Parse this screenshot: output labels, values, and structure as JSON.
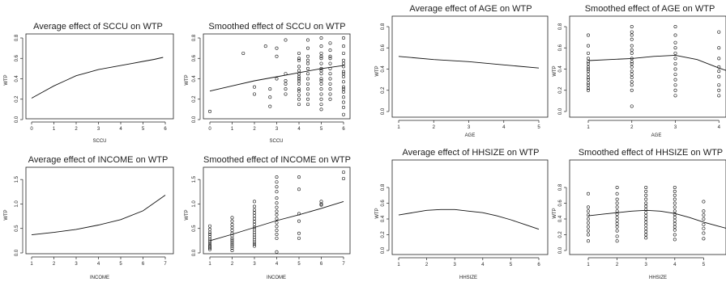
{
  "figure": {
    "panels": [
      {
        "id": "p1",
        "title": "Average effect of SCCU on WTP",
        "xlabel": "SCCU",
        "ylabel": "WTP"
      },
      {
        "id": "p2",
        "title": "Smoothed effect of SCCU on WTP",
        "xlabel": "SCCU",
        "ylabel": "WTP"
      },
      {
        "id": "p3",
        "title": "Average effect of AGE on WTP",
        "xlabel": "AGE",
        "ylabel": "WTP"
      },
      {
        "id": "p4",
        "title": "Smoothed effect of AGE on WTP",
        "xlabel": "AGE",
        "ylabel": "WTP"
      },
      {
        "id": "p5",
        "title": "Average effect of INCOME on WTP",
        "xlabel": "INCOME",
        "ylabel": "WTP"
      },
      {
        "id": "p6",
        "title": "Smoothed effect of INCOME on WTP",
        "xlabel": "INCOME",
        "ylabel": "WTP"
      },
      {
        "id": "p7",
        "title": "Average effect of HHSIZE on WTP",
        "xlabel": "HHSIZE",
        "ylabel": "WTP"
      },
      {
        "id": "p8",
        "title": "Smoothed effect of HHSIZE on WTP",
        "xlabel": "HHSIZE",
        "ylabel": "WTP"
      }
    ]
  },
  "chart_data": [
    {
      "type": "line",
      "title": "Average effect of SCCU on WTP",
      "xlabel": "SCCU",
      "ylabel": "WTP",
      "xlim": [
        0,
        6
      ],
      "ylim": [
        0,
        0.8
      ],
      "xticks": [
        "0",
        "1",
        "2",
        "3",
        "4",
        "5",
        "6"
      ],
      "yticks": [
        "0.0",
        "0.2",
        "0.4",
        "0.6",
        "0.8"
      ],
      "series": [
        {
          "x": [
            0,
            0.5,
            1,
            1.5,
            2,
            2.5,
            3,
            3.5,
            4,
            4.5,
            5,
            5.5,
            5.9
          ],
          "y": [
            0.21,
            0.27,
            0.33,
            0.38,
            0.43,
            0.46,
            0.49,
            0.51,
            0.53,
            0.55,
            0.57,
            0.59,
            0.61
          ]
        }
      ]
    },
    {
      "type": "scatter",
      "title": "Smoothed effect of SCCU on WTP",
      "xlabel": "SCCU",
      "ylabel": "WTP",
      "xlim": [
        0,
        6
      ],
      "ylim": [
        0,
        0.8
      ],
      "xticks": [
        "0",
        "1",
        "2",
        "3",
        "4",
        "5",
        "6"
      ],
      "yticks": [
        "0.0",
        "0.2",
        "0.4",
        "0.6",
        "0.8"
      ],
      "points": {
        "x": [
          0,
          1.5,
          2,
          2,
          2.5,
          2.7,
          2.7,
          2.7,
          3,
          3,
          3,
          3.4,
          3.4,
          3.4,
          3.4,
          3.4,
          3.4,
          4,
          4,
          4,
          4,
          4,
          4,
          4,
          4,
          4,
          4,
          4,
          4,
          4,
          4,
          4,
          4.4,
          4.4,
          4.4,
          4.4,
          4.4,
          4.4,
          4.4,
          4.4,
          4.4,
          4.4,
          4.4,
          4.4,
          4.4,
          5,
          5,
          5,
          5,
          5,
          5,
          5,
          5,
          5,
          5,
          5,
          5,
          5,
          5,
          5,
          5,
          5,
          5.4,
          5.4,
          5.4,
          5.4,
          5.4,
          5.4,
          5.4,
          5.4,
          5.4,
          5.4,
          5.4,
          5.4,
          6,
          6,
          6,
          6,
          6,
          6,
          6,
          6,
          6,
          6,
          6,
          6,
          6,
          6,
          6,
          6,
          6
        ],
        "y": [
          0.08,
          0.65,
          0.32,
          0.25,
          0.72,
          0.3,
          0.22,
          0.13,
          0.4,
          0.7,
          0.62,
          0.78,
          0.45,
          0.3,
          0.38,
          0.25,
          0.35,
          0.65,
          0.58,
          0.48,
          0.4,
          0.35,
          0.3,
          0.24,
          0.2,
          0.15,
          0.45,
          0.52,
          0.28,
          0.38,
          0.42,
          0.6,
          0.78,
          0.7,
          0.62,
          0.55,
          0.5,
          0.45,
          0.4,
          0.35,
          0.3,
          0.25,
          0.2,
          0.15,
          0.58,
          0.8,
          0.72,
          0.65,
          0.6,
          0.55,
          0.5,
          0.45,
          0.4,
          0.35,
          0.3,
          0.25,
          0.2,
          0.15,
          0.1,
          0.48,
          0.62,
          0.38,
          0.75,
          0.68,
          0.62,
          0.55,
          0.5,
          0.45,
          0.4,
          0.35,
          0.3,
          0.25,
          0.2,
          0.6,
          0.8,
          0.72,
          0.65,
          0.58,
          0.52,
          0.47,
          0.42,
          0.37,
          0.32,
          0.27,
          0.22,
          0.17,
          0.12,
          0.05,
          0.45,
          0.55,
          0.3
        ]
      },
      "series": [
        {
          "x": [
            0,
            1,
            2,
            3,
            4,
            5,
            6
          ],
          "y": [
            0.28,
            0.33,
            0.38,
            0.42,
            0.46,
            0.5,
            0.53
          ]
        }
      ]
    },
    {
      "type": "line",
      "title": "Average effect of AGE on WTP",
      "xlabel": "AGE",
      "ylabel": "WTP",
      "xlim": [
        1,
        5
      ],
      "ylim": [
        0,
        0.8
      ],
      "xticks": [
        "1",
        "2",
        "3",
        "4",
        "5"
      ],
      "yticks": [
        "0.0",
        "0.2",
        "0.4",
        "0.6",
        "0.8"
      ],
      "series": [
        {
          "x": [
            1,
            2,
            3,
            4,
            5
          ],
          "y": [
            0.52,
            0.49,
            0.47,
            0.44,
            0.41
          ]
        }
      ]
    },
    {
      "type": "scatter",
      "title": "Smoothed effect of AGE on WTP",
      "xlabel": "AGE",
      "ylabel": "WTP",
      "xlim": [
        1,
        5
      ],
      "ylim": [
        0,
        0.8
      ],
      "xticks": [
        "1",
        "2",
        "3",
        "4"
      ],
      "yticks": [
        "0.0",
        "0.2",
        "0.4",
        "0.6",
        "0.8"
      ],
      "points": {
        "x": [
          1,
          1,
          1,
          1,
          1,
          1,
          1,
          1,
          1,
          1,
          1,
          1,
          1,
          1,
          1,
          1,
          2,
          2,
          2,
          2,
          2,
          2,
          2,
          2,
          2,
          2,
          2,
          2,
          2,
          2,
          2,
          2,
          2,
          2,
          3,
          3,
          3,
          3,
          3,
          3,
          3,
          3,
          3,
          3,
          3,
          3,
          3,
          4,
          4,
          4,
          4,
          4,
          4,
          4,
          4,
          4
        ],
        "y": [
          0.72,
          0.62,
          0.55,
          0.5,
          0.47,
          0.45,
          0.42,
          0.4,
          0.38,
          0.35,
          0.32,
          0.3,
          0.27,
          0.25,
          0.22,
          0.2,
          0.8,
          0.75,
          0.72,
          0.68,
          0.62,
          0.58,
          0.55,
          0.5,
          0.47,
          0.45,
          0.42,
          0.38,
          0.35,
          0.32,
          0.28,
          0.25,
          0.2,
          0.05,
          0.8,
          0.72,
          0.65,
          0.6,
          0.55,
          0.5,
          0.45,
          0.4,
          0.35,
          0.3,
          0.25,
          0.2,
          0.15,
          0.75,
          0.6,
          0.5,
          0.42,
          0.38,
          0.33,
          0.25,
          0.2,
          0.15
        ]
      },
      "series": [
        {
          "x": [
            1,
            1.5,
            2,
            2.5,
            3,
            3.5,
            4,
            4.5,
            5
          ],
          "y": [
            0.48,
            0.49,
            0.5,
            0.52,
            0.53,
            0.49,
            0.41,
            0.34,
            0.28
          ]
        }
      ]
    },
    {
      "type": "line",
      "title": "Average effect of INCOME on WTP",
      "xlabel": "INCOME",
      "ylabel": "WTP",
      "xlim": [
        1,
        7
      ],
      "ylim": [
        0,
        1.8
      ],
      "xticks": [
        "1",
        "2",
        "3",
        "4",
        "5",
        "6",
        "7"
      ],
      "yticks": [
        "0.0",
        "0.5",
        "1.0",
        "1.5"
      ],
      "series": [
        {
          "x": [
            1,
            2,
            3,
            4,
            5,
            6,
            7
          ],
          "y": [
            0.37,
            0.42,
            0.48,
            0.57,
            0.68,
            0.86,
            1.18
          ]
        }
      ]
    },
    {
      "type": "scatter",
      "title": "Smoothed effect of INCOME on WTP",
      "xlabel": "INCOME",
      "ylabel": "WTP",
      "xlim": [
        1,
        7
      ],
      "ylim": [
        0,
        1.8
      ],
      "xticks": [
        "1",
        "2",
        "3",
        "4",
        "5",
        "6",
        "7"
      ],
      "yticks": [
        "0.0",
        "0.5",
        "1.0",
        "1.5"
      ],
      "points": {
        "x": [
          1,
          1,
          1,
          1,
          1,
          1,
          1,
          1,
          1,
          1,
          1,
          1,
          2,
          2,
          2,
          2,
          2,
          2,
          2,
          2,
          2,
          2,
          2,
          2,
          2,
          2,
          3,
          3,
          3,
          3,
          3,
          3,
          3,
          3,
          3,
          3,
          3,
          3,
          3,
          3,
          3,
          3,
          3,
          4,
          4,
          4,
          4,
          4,
          4,
          4,
          4,
          4,
          4,
          4,
          4,
          4,
          4,
          4,
          4,
          5,
          5,
          5,
          5,
          5,
          5,
          5,
          6,
          6,
          6,
          7,
          7
        ],
        "y": [
          0.55,
          0.48,
          0.42,
          0.38,
          0.33,
          0.28,
          0.24,
          0.2,
          0.16,
          0.13,
          0.1,
          0.07,
          0.72,
          0.65,
          0.58,
          0.52,
          0.46,
          0.4,
          0.35,
          0.3,
          0.26,
          0.22,
          0.18,
          0.14,
          0.1,
          0.05,
          1.05,
          0.95,
          0.88,
          0.82,
          0.76,
          0.7,
          0.64,
          0.58,
          0.52,
          0.47,
          0.42,
          0.37,
          0.32,
          0.27,
          0.22,
          0.18,
          0.14,
          1.55,
          1.45,
          1.35,
          1.25,
          1.12,
          1.02,
          0.93,
          0.85,
          0.78,
          0.7,
          0.62,
          0.54,
          0.46,
          0.38,
          0.3,
          0.02,
          1.8,
          1.55,
          1.3,
          0.8,
          0.65,
          0.4,
          0.3,
          1.05,
          1.0,
          0.98,
          1.65,
          1.52
        ]
      },
      "series": [
        {
          "x": [
            1,
            2,
            3,
            4,
            5,
            6,
            7
          ],
          "y": [
            0.25,
            0.38,
            0.52,
            0.66,
            0.78,
            0.91,
            1.05
          ]
        }
      ]
    },
    {
      "type": "line",
      "title": "Average effect of HHSIZE on WTP",
      "xlabel": "HHSIZE",
      "ylabel": "WTP",
      "xlim": [
        1,
        6
      ],
      "ylim": [
        0,
        0.8
      ],
      "xticks": [
        "1",
        "2",
        "3",
        "4",
        "5",
        "6"
      ],
      "yticks": [
        "0.0",
        "0.2",
        "0.4",
        "0.6",
        "0.8"
      ],
      "series": [
        {
          "x": [
            1,
            1.5,
            2,
            2.5,
            3,
            3.5,
            4,
            4.5,
            5,
            5.5,
            6
          ],
          "y": [
            0.45,
            0.48,
            0.51,
            0.52,
            0.52,
            0.5,
            0.48,
            0.44,
            0.39,
            0.33,
            0.27
          ]
        }
      ]
    },
    {
      "type": "scatter",
      "title": "Smoothed effect of HHSIZE on WTP",
      "xlabel": "HHSIZE",
      "ylabel": "WTP",
      "xlim": [
        1,
        6
      ],
      "ylim": [
        0,
        0.8
      ],
      "xticks": [
        "1",
        "2",
        "3",
        "4",
        "5"
      ],
      "yticks": [
        "0.0",
        "0.2",
        "0.4",
        "0.6",
        "0.8"
      ],
      "points": {
        "x": [
          1,
          1,
          1,
          1,
          1,
          1,
          1,
          1,
          1,
          1,
          2,
          2,
          2,
          2,
          2,
          2,
          2,
          2,
          2,
          2,
          2,
          2,
          2,
          2,
          3,
          3,
          3,
          3,
          3,
          3,
          3,
          3,
          3,
          3,
          3,
          3,
          3,
          3,
          3,
          3,
          4,
          4,
          4,
          4,
          4,
          4,
          4,
          4,
          4,
          4,
          4,
          4,
          4,
          4,
          4,
          5,
          5,
          5,
          5,
          5,
          5,
          5,
          5
        ],
        "y": [
          0.72,
          0.55,
          0.5,
          0.45,
          0.4,
          0.35,
          0.3,
          0.25,
          0.2,
          0.12,
          0.8,
          0.72,
          0.65,
          0.6,
          0.55,
          0.5,
          0.46,
          0.42,
          0.38,
          0.34,
          0.3,
          0.25,
          0.18,
          0.12,
          0.8,
          0.75,
          0.7,
          0.65,
          0.6,
          0.56,
          0.52,
          0.48,
          0.44,
          0.4,
          0.36,
          0.32,
          0.28,
          0.24,
          0.2,
          0.16,
          0.8,
          0.75,
          0.7,
          0.65,
          0.6,
          0.55,
          0.5,
          0.46,
          0.42,
          0.38,
          0.34,
          0.3,
          0.26,
          0.2,
          0.14,
          0.62,
          0.5,
          0.45,
          0.4,
          0.33,
          0.28,
          0.22,
          0.15
        ]
      },
      "series": [
        {
          "x": [
            1,
            1.5,
            2,
            2.5,
            3,
            3.5,
            4,
            4.5,
            5,
            5.5,
            6
          ],
          "y": [
            0.44,
            0.46,
            0.48,
            0.5,
            0.51,
            0.5,
            0.47,
            0.42,
            0.36,
            0.31,
            0.26
          ]
        }
      ]
    }
  ]
}
